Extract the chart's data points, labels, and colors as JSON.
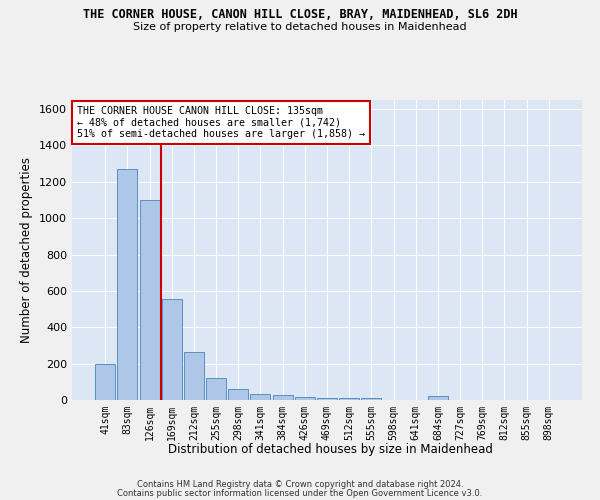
{
  "title": "THE CORNER HOUSE, CANON HILL CLOSE, BRAY, MAIDENHEAD, SL6 2DH",
  "subtitle": "Size of property relative to detached houses in Maidenhead",
  "xlabel": "Distribution of detached houses by size in Maidenhead",
  "ylabel": "Number of detached properties",
  "bar_labels": [
    "41sqm",
    "83sqm",
    "126sqm",
    "169sqm",
    "212sqm",
    "255sqm",
    "298sqm",
    "341sqm",
    "384sqm",
    "426sqm",
    "469sqm",
    "512sqm",
    "555sqm",
    "598sqm",
    "641sqm",
    "684sqm",
    "727sqm",
    "769sqm",
    "812sqm",
    "855sqm",
    "898sqm"
  ],
  "bar_values": [
    200,
    1270,
    1100,
    555,
    265,
    120,
    60,
    35,
    25,
    15,
    10,
    10,
    10,
    0,
    0,
    20,
    0,
    0,
    0,
    0,
    0
  ],
  "bar_color": "#aec6e8",
  "bar_edge_color": "#5a8fc0",
  "vline_x": 2.5,
  "vline_color": "#cc0000",
  "annotation_text": "THE CORNER HOUSE CANON HILL CLOSE: 135sqm\n← 48% of detached houses are smaller (1,742)\n51% of semi-detached houses are larger (1,858) →",
  "annotation_box_color": "#ffffff",
  "annotation_box_edge": "#cc0000",
  "ylim": [
    0,
    1650
  ],
  "yticks": [
    0,
    200,
    400,
    600,
    800,
    1000,
    1200,
    1400,
    1600
  ],
  "background_color": "#dce6f5",
  "fig_background": "#f0f0f0",
  "grid_color": "#ffffff",
  "footer1": "Contains HM Land Registry data © Crown copyright and database right 2024.",
  "footer2": "Contains public sector information licensed under the Open Government Licence v3.0."
}
